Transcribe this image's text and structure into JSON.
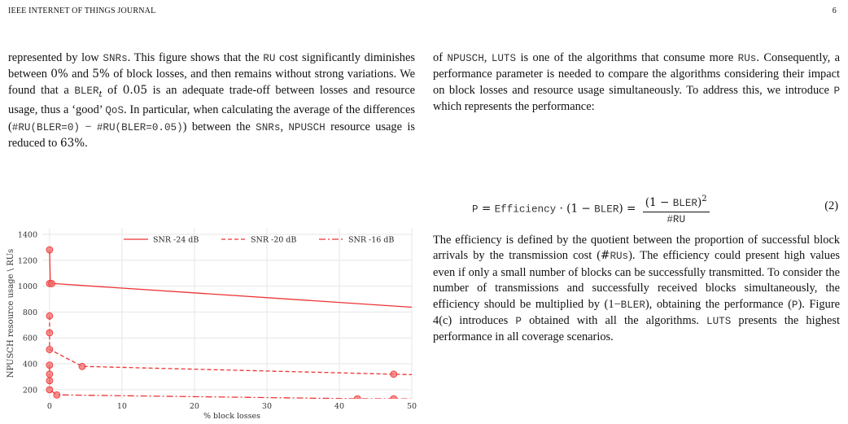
{
  "header": {
    "journal": "IEEE INTERNET OF THINGS JOURNAL",
    "page_number": "6"
  },
  "left_paragraph": {
    "s1": "represented by low ",
    "c_snrs": "SNRs",
    "s2": ". This figure shows that the ",
    "c_ru": "RU",
    "s3": " cost significantly diminishes between ",
    "m_0pct": "0%",
    "s4": " and ",
    "m_5pct": "5%",
    "s5": " of block losses, and then remains without strong variations. We found that a ",
    "c_bler": "BLER",
    "m_sub_t": "t",
    "s6": " of ",
    "m_005": "0.05",
    "s7": " is an adequate trade-off between losses and resource usage, thus a ‘good’ ",
    "c_qos": "QoS",
    "s8": ". In particular, when calculating the average of the differences (",
    "c_diff1": "#RU(BLER=0)",
    "s_minus": " − ",
    "c_diff2": "#RU(BLER=0.05)",
    "s9": ") between the ",
    "c_snrs2": "SNRs",
    "s10": ", ",
    "c_npusch": "NPUSCH",
    "s11": " resource usage is reduced to ",
    "m_63": "63%",
    "s12": "."
  },
  "right_paragraph_1": {
    "s1": "of ",
    "c_npusch": "NPUSCH",
    "s2": ", ",
    "c_luts": "LUTS",
    "s3": " is one of the algorithms that consume more ",
    "c_rus": "RUs",
    "s4": ". Consequently, a performance parameter is needed to compare the algorithms considering their impact on block losses and resource usage simultaneously. To address this, we introduce ",
    "c_p": "P",
    "s5": " which represents the performance:"
  },
  "equation": {
    "lhs": "P",
    "eq1": " = ",
    "eff": "Efficiency",
    "dot_open": " · (1 − ",
    "bler": "BLER",
    "close_eq": ") = ",
    "num_open": "(1 − ",
    "num_bler": "BLER",
    "num_close": ")",
    "num_exp": "2",
    "den": "#RU",
    "number": "(2)"
  },
  "right_paragraph_2": {
    "s1": "The efficiency is defined by the quotient between the proportion of successful block arrivals by the transmission cost (",
    "c_rus_hash": "#",
    "c_rus": "RUs",
    "s2": "). The efficiency could present high values even if only a small number of blocks can be successfully transmitted. To consider the number of transmissions and successfully received blocks simultaneously, the efficiency should be multiplied by (1−",
    "c_bler": "BLER",
    "s3": "), obtaining the performance (",
    "c_p": "P",
    "s4": "). Figure 4(c) introduces ",
    "c_p2": "P",
    "s5": " obtained with all the algorithms. ",
    "c_luts": "LUTS",
    "s6": " presents the highest performance in all coverage scenarios."
  },
  "chart_data": {
    "type": "line",
    "xlabel": "% block losses",
    "ylabel": "NPUSCH resource usage \\ RUs",
    "xlim": [
      -1,
      50
    ],
    "ylim": [
      130,
      1450
    ],
    "x_ticks": [
      0,
      10,
      20,
      30,
      40,
      50
    ],
    "y_ticks": [
      200,
      400,
      600,
      800,
      1000,
      1200,
      1400
    ],
    "grid": true,
    "legend_placement": "top-right",
    "colors": {
      "series": "#ee3333",
      "marker": "#f06a6a",
      "grid": "#e6e6e6",
      "axis_text": "#333333"
    },
    "series": [
      {
        "name": "SNR -24 dB",
        "line_style": "solid",
        "points": [
          [
            0,
            1280
          ],
          [
            0.1,
            1030
          ],
          [
            0.5,
            1020
          ],
          [
            60,
            800
          ]
        ],
        "markers": [
          [
            0,
            1280
          ],
          [
            0,
            1020
          ],
          [
            0.3,
            1020
          ]
        ]
      },
      {
        "name": "SNR -20 dB",
        "line_style": "dashed",
        "points": [
          [
            0,
            770
          ],
          [
            0,
            640
          ],
          [
            0,
            510
          ],
          [
            0.4,
            500
          ],
          [
            4.5,
            380
          ],
          [
            47.5,
            320
          ],
          [
            55,
            310
          ]
        ],
        "markers": [
          [
            0,
            770
          ],
          [
            0,
            640
          ],
          [
            0,
            510
          ],
          [
            4.5,
            380
          ],
          [
            47.5,
            320
          ]
        ]
      },
      {
        "name": "SNR -16 dB",
        "line_style": "dashdot",
        "points": [
          [
            0,
            390
          ],
          [
            0,
            320
          ],
          [
            0,
            270
          ],
          [
            0,
            200
          ],
          [
            1,
            160
          ],
          [
            42.5,
            130
          ],
          [
            47.5,
            130
          ],
          [
            55,
            125
          ]
        ],
        "markers": [
          [
            0,
            390
          ],
          [
            0,
            320
          ],
          [
            0,
            270
          ],
          [
            0,
            200
          ],
          [
            1,
            160
          ],
          [
            42.5,
            130
          ],
          [
            47.5,
            130
          ]
        ]
      }
    ]
  }
}
